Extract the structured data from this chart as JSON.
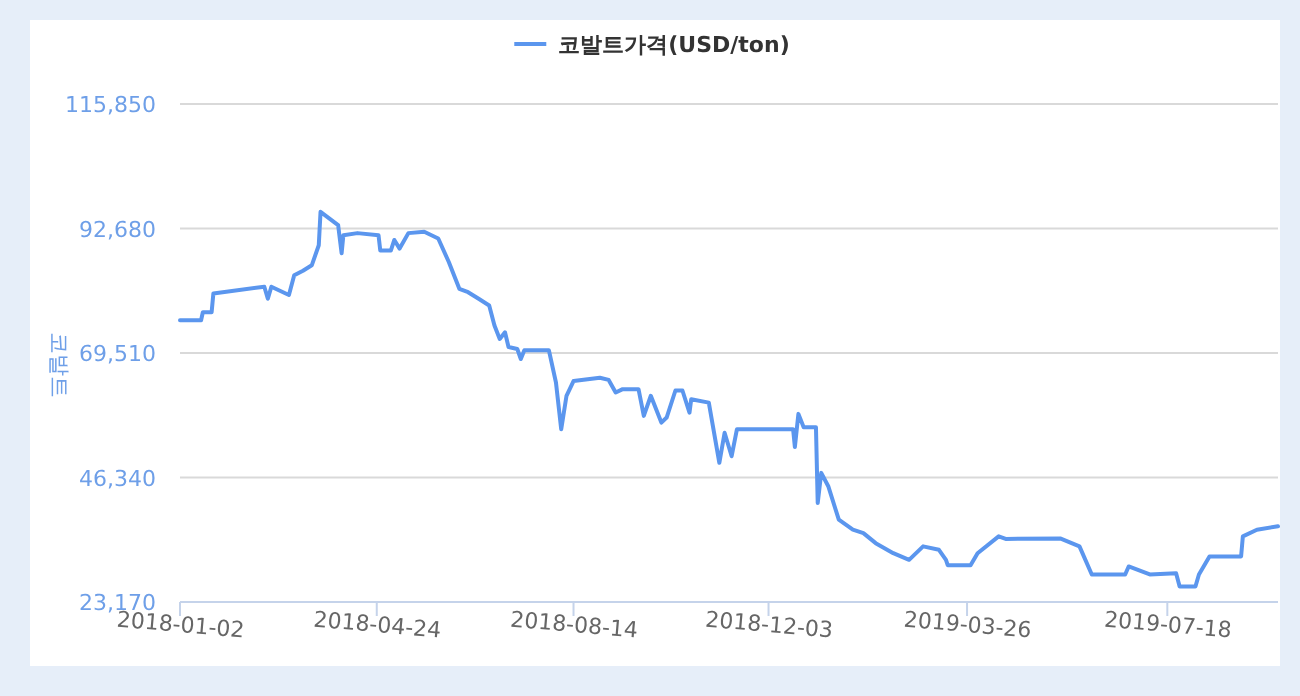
{
  "chart_data": {
    "type": "line",
    "ylabel": "코발트",
    "legend": "top",
    "grid": "y",
    "marker": "none",
    "line_style": "solid",
    "xlim": [
      "2018-01-02",
      "2019-09-19"
    ],
    "xticks": [
      "2018-01-02",
      "2018-04-24",
      "2018-08-14",
      "2018-12-03",
      "2019-03-26",
      "2019-07-18"
    ],
    "ylim": [
      23170,
      115850
    ],
    "yticks": [
      {
        "value": 23170,
        "label": "23,170"
      },
      {
        "value": 46340,
        "label": "46,340"
      },
      {
        "value": 69510,
        "label": "69,510"
      },
      {
        "value": 92680,
        "label": "92,680"
      },
      {
        "value": 115850,
        "label": "115,850"
      }
    ],
    "series": [
      {
        "name": "코발트가격(USD/ton)",
        "color": "#5b96ee",
        "x": [
          "2018-01-02",
          "2018-01-14",
          "2018-01-15",
          "2018-01-17",
          "2018-01-20",
          "2018-01-21",
          "2018-02-19",
          "2018-02-21",
          "2018-02-23",
          "2018-03-05",
          "2018-03-08",
          "2018-03-13",
          "2018-03-18",
          "2018-03-22",
          "2018-03-23",
          "2018-04-02",
          "2018-04-04",
          "2018-04-05",
          "2018-04-13",
          "2018-04-25",
          "2018-04-26",
          "2018-05-02",
          "2018-05-04",
          "2018-05-07",
          "2018-05-12",
          "2018-05-21",
          "2018-05-29",
          "2018-06-04",
          "2018-06-10",
          "2018-06-15",
          "2018-06-21",
          "2018-06-27",
          "2018-06-30",
          "2018-07-03",
          "2018-07-06",
          "2018-07-08",
          "2018-07-13",
          "2018-07-15",
          "2018-07-17",
          "2018-07-31",
          "2018-08-04",
          "2018-08-07",
          "2018-08-10",
          "2018-08-14",
          "2018-08-29",
          "2018-09-03",
          "2018-09-07",
          "2018-09-11",
          "2018-09-20",
          "2018-09-23",
          "2018-09-27",
          "2018-10-03",
          "2018-10-06",
          "2018-10-11",
          "2018-10-15",
          "2018-10-19",
          "2018-10-20",
          "2018-10-30",
          "2018-11-05",
          "2018-11-08",
          "2018-11-12",
          "2018-11-15",
          "2018-12-17",
          "2018-12-18",
          "2018-12-20",
          "2018-12-23",
          "2018-12-30",
          "2018-12-31",
          "2019-01-02",
          "2019-01-06",
          "2019-01-12",
          "2019-01-20",
          "2019-01-26",
          "2019-02-02",
          "2019-02-12",
          "2019-02-21",
          "2019-03-01",
          "2019-03-10",
          "2019-03-14",
          "2019-03-15",
          "2019-03-28",
          "2019-04-01",
          "2019-04-13",
          "2019-04-17",
          "2019-05-18",
          "2019-05-29",
          "2019-06-05",
          "2019-06-24",
          "2019-06-26",
          "2019-07-08",
          "2019-07-23",
          "2019-07-25",
          "2019-08-03",
          "2019-08-05",
          "2019-08-11",
          "2019-08-29",
          "2019-08-30",
          "2019-09-07",
          "2019-09-19"
        ],
        "values": [
          75600,
          75600,
          77100,
          77100,
          77100,
          80600,
          81840,
          79600,
          81840,
          80300,
          83970,
          84830,
          85830,
          89570,
          95780,
          93320,
          88080,
          91440,
          91820,
          91440,
          88570,
          88570,
          90550,
          88940,
          91820,
          92070,
          90810,
          86440,
          81450,
          80830,
          79600,
          78360,
          74630,
          72120,
          73370,
          70630,
          70260,
          68390,
          70000,
          70000,
          64020,
          55310,
          61550,
          64280,
          64910,
          64500,
          62150,
          62780,
          62780,
          57810,
          61550,
          56560,
          57500,
          62530,
          62530,
          58410,
          60910,
          60280,
          49070,
          54670,
          50300,
          55310,
          55310,
          52000,
          58180,
          55700,
          55700,
          41600,
          47200,
          44720,
          38490,
          36620,
          35990,
          34120,
          32250,
          31020,
          33520,
          32890,
          31020,
          30010,
          30010,
          32250,
          35390,
          34900,
          35010,
          33520,
          28290,
          28290,
          29780,
          28290,
          28510,
          26050,
          26050,
          28290,
          31650,
          31650,
          35390,
          36620,
          37260
        ]
      }
    ]
  }
}
